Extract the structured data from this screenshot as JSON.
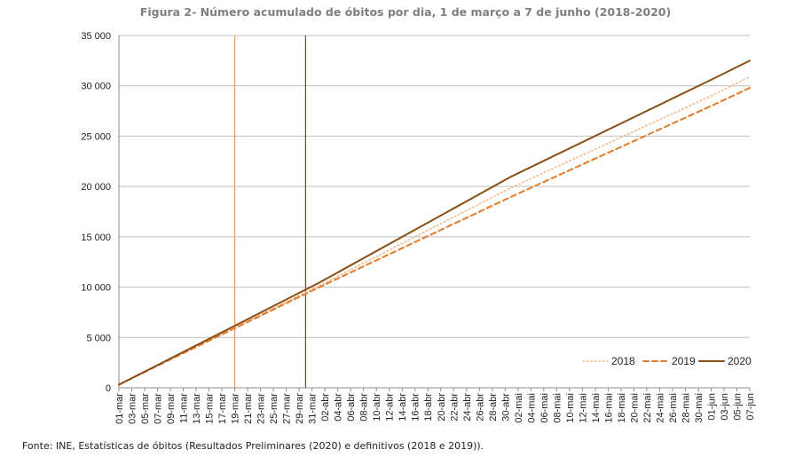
{
  "title": "Figura 2- Número acumulado de óbitos por dia, 1 de março a 7 de junho (2018-2020)",
  "source": "Fonte: INE, Estatísticas de óbitos (Resultados Preliminares (2020) e definitivos (2018 e 2019)).",
  "chart_data": {
    "type": "line",
    "title": "Figura 2- Número acumulado de óbitos por dia, 1 de março a 7 de junho (2018-2020)",
    "xlabel": "",
    "ylabel": "",
    "ylim": [
      0,
      35000
    ],
    "yticks": [
      0,
      5000,
      10000,
      15000,
      20000,
      25000,
      30000,
      35000
    ],
    "ytick_labels": [
      "0",
      "5 000",
      "10 000",
      "15 000",
      "20 000",
      "25 000",
      "30 000",
      "35 000"
    ],
    "x_start": "01-mar",
    "x_end": "07-jun",
    "x_labels": [
      "01-mar",
      "03-mar",
      "05-mar",
      "07-mar",
      "09-mar",
      "11-mar",
      "13-mar",
      "15-mar",
      "17-mar",
      "19-mar",
      "21-mar",
      "23-mar",
      "25-mar",
      "27-mar",
      "29-mar",
      "31-mar",
      "02-abr",
      "04-abr",
      "06-abr",
      "08-abr",
      "10-abr",
      "12-abr",
      "14-abr",
      "16-abr",
      "18-abr",
      "20-abr",
      "22-abr",
      "24-abr",
      "26-abr",
      "28-abr",
      "30-abr",
      "02-mai",
      "04-mai",
      "06-mai",
      "08-mai",
      "10-mai",
      "12-mai",
      "14-mai",
      "16-mai",
      "18-mai",
      "20-mai",
      "22-mai",
      "24-mai",
      "26-mai",
      "28-mai",
      "30-mai",
      "01-jun",
      "03-jun",
      "05-jun",
      "07-jun"
    ],
    "grid": true,
    "legend_position": "bottom-right",
    "vertical_markers": [
      {
        "date": "19-mar",
        "color": "#e0a060"
      },
      {
        "date": "30-mar",
        "color": "#7a4a1c"
      }
    ],
    "series": [
      {
        "name": "2018",
        "style": "dotted",
        "color": "#f2b98a",
        "x": [
          "01-mar",
          "01-abr",
          "01-mai",
          "01-jun",
          "07-jun"
        ],
        "values": [
          350,
          10100,
          19900,
          29000,
          30900
        ]
      },
      {
        "name": "2019",
        "style": "dashed",
        "color": "#e07b2a",
        "x": [
          "01-mar",
          "01-abr",
          "01-mai",
          "01-jun",
          "07-jun"
        ],
        "values": [
          330,
          9950,
          19000,
          28000,
          29800
        ]
      },
      {
        "name": "2020",
        "style": "solid",
        "color": "#8a4f16",
        "x": [
          "01-mar",
          "01-abr",
          "01-mai",
          "01-jun",
          "07-jun"
        ],
        "values": [
          300,
          10400,
          21000,
          30600,
          32500
        ]
      }
    ]
  }
}
